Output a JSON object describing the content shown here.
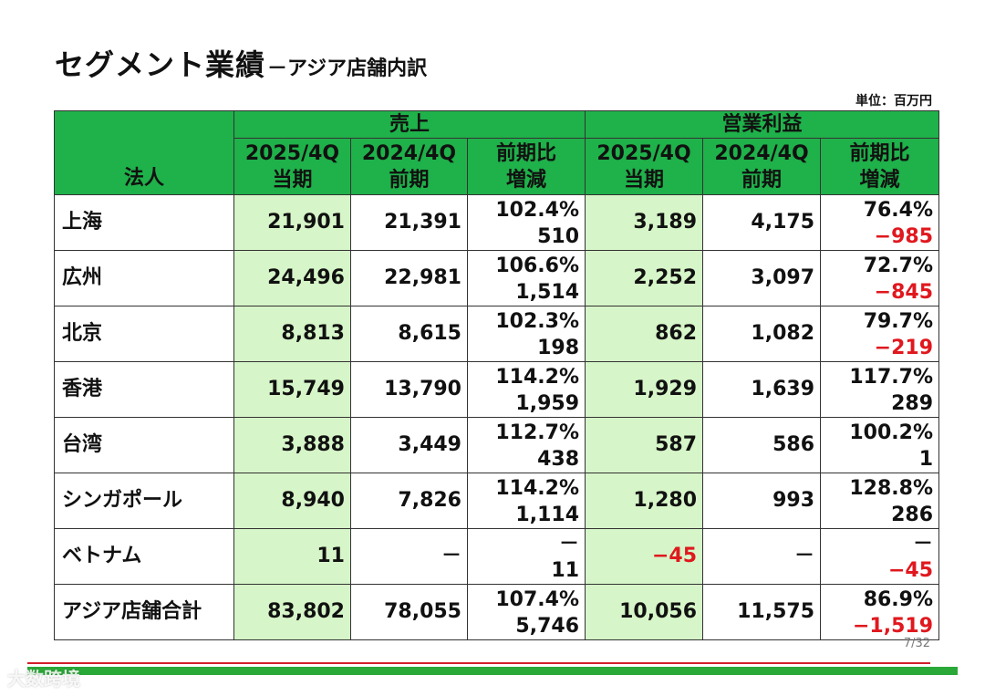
{
  "title": {
    "main": "セグメント業績",
    "sub": "－アジア店舗内訳"
  },
  "unit": "単位：百万円",
  "headers": {
    "corner": "法人",
    "group_sales": "売上",
    "group_profit": "営業利益",
    "col1_top": "2025/4Q",
    "col1_bottom": "当期",
    "col2_top": "2024/4Q",
    "col2_bottom": "前期",
    "col3_top": "前期比",
    "col3_bottom": "増減",
    "col4_top": "2025/4Q",
    "col4_bottom": "当期",
    "col5_top": "2024/4Q",
    "col5_bottom": "前期",
    "col6_top": "前期比",
    "col6_bottom": "増減"
  },
  "rows": [
    {
      "name": "上海",
      "sales_cur": "21,901",
      "sales_prev": "21,391",
      "sales_ratio": "102.4%",
      "sales_diff": "510",
      "op_cur": "3,189",
      "op_prev": "4,175",
      "op_ratio": "76.4%",
      "op_diff": "−985"
    },
    {
      "name": "広州",
      "sales_cur": "24,496",
      "sales_prev": "22,981",
      "sales_ratio": "106.6%",
      "sales_diff": "1,514",
      "op_cur": "2,252",
      "op_prev": "3,097",
      "op_ratio": "72.7%",
      "op_diff": "−845"
    },
    {
      "name": "北京",
      "sales_cur": "8,813",
      "sales_prev": "8,615",
      "sales_ratio": "102.3%",
      "sales_diff": "198",
      "op_cur": "862",
      "op_prev": "1,082",
      "op_ratio": "79.7%",
      "op_diff": "−219"
    },
    {
      "name": "香港",
      "sales_cur": "15,749",
      "sales_prev": "13,790",
      "sales_ratio": "114.2%",
      "sales_diff": "1,959",
      "op_cur": "1,929",
      "op_prev": "1,639",
      "op_ratio": "117.7%",
      "op_diff": "289"
    },
    {
      "name": "台湾",
      "sales_cur": "3,888",
      "sales_prev": "3,449",
      "sales_ratio": "112.7%",
      "sales_diff": "438",
      "op_cur": "587",
      "op_prev": "586",
      "op_ratio": "100.2%",
      "op_diff": "1"
    },
    {
      "name": "シンガポール",
      "sales_cur": "8,940",
      "sales_prev": "7,826",
      "sales_ratio": "114.2%",
      "sales_diff": "1,114",
      "op_cur": "1,280",
      "op_prev": "993",
      "op_ratio": "128.8%",
      "op_diff": "286"
    },
    {
      "name": "ベトナム",
      "sales_cur": "11",
      "sales_prev": "－",
      "sales_ratio": "－",
      "sales_diff": "11",
      "op_cur": "−45",
      "op_prev": "－",
      "op_ratio": "－",
      "op_diff": "−45"
    },
    {
      "name": "アジア店舗合計",
      "sales_cur": "83,802",
      "sales_prev": "78,055",
      "sales_ratio": "107.4%",
      "sales_diff": "5,746",
      "op_cur": "10,056",
      "op_prev": "11,575",
      "op_ratio": "86.9%",
      "op_diff": "−1,519"
    }
  ],
  "page_number": "7/32",
  "watermark": "大数跨境",
  "colors": {
    "header_green": "#1fb14a",
    "current_bg": "#d6f5c8",
    "negative_red": "#e0181e",
    "footer_green": "#2aa838",
    "footer_red": "#d21f2a"
  }
}
